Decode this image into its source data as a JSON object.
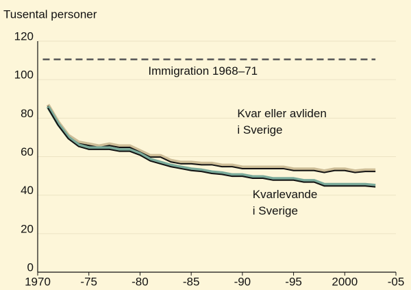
{
  "chart_data": {
    "type": "line",
    "y_axis_label": "Tusental personer",
    "x": [
      1971,
      1972,
      1973,
      1974,
      1975,
      1976,
      1977,
      1978,
      1979,
      1980,
      1981,
      1982,
      1983,
      1984,
      1985,
      1986,
      1987,
      1988,
      1989,
      1990,
      1991,
      1992,
      1993,
      1994,
      1995,
      1996,
      1997,
      1998,
      1999,
      2000,
      2001,
      2002,
      2003
    ],
    "series": [
      {
        "name": "Kvar eller avliden i Sverige",
        "label_lines": [
          "Kvar eller avliden",
          "i Sverige"
        ],
        "color": "#cdbd97",
        "values": [
          87,
          78,
          71,
          67.5,
          66.5,
          65.5,
          66.5,
          65.5,
          65.5,
          63,
          60.5,
          60.5,
          58,
          57,
          57,
          56.5,
          56.5,
          55.5,
          55.5,
          54.5,
          54.5,
          54.5,
          54.5,
          54.5,
          53.5,
          53.5,
          53.5,
          52.5,
          53.5,
          53.5,
          52.5,
          53,
          53
        ]
      },
      {
        "name": "Kvarlevande i Sverige",
        "label_lines": [
          "Kvarlevande",
          "i Sverige"
        ],
        "color": "#7aaa9a",
        "values": [
          86,
          77,
          70,
          66,
          64.5,
          64.5,
          64.5,
          63.5,
          63.5,
          61.5,
          58.5,
          57,
          55.5,
          54.5,
          53.5,
          53,
          52,
          51.5,
          50.5,
          50.5,
          49.5,
          49.5,
          48.5,
          48.5,
          48.5,
          47.5,
          47.5,
          45.5,
          45.5,
          45.5,
          45.5,
          45.5,
          45
        ]
      }
    ],
    "reference_line": {
      "value": 110.5,
      "label": "Immigration 1968–71",
      "color": "#555555"
    },
    "xlim": [
      1970,
      2005
    ],
    "ylim": [
      0,
      120
    ],
    "xticks": [
      1970,
      {
        "value": 1975,
        "label": "-75"
      },
      {
        "value": 1980,
        "label": "-80"
      },
      {
        "value": 1985,
        "label": "-85"
      },
      {
        "value": 1990,
        "label": "-90"
      },
      {
        "value": 1995,
        "label": "-95"
      },
      2000,
      {
        "value": 2005,
        "label": "-05"
      }
    ],
    "yticks": [
      0,
      20,
      40,
      60,
      80,
      100,
      120
    ],
    "grid": true
  }
}
